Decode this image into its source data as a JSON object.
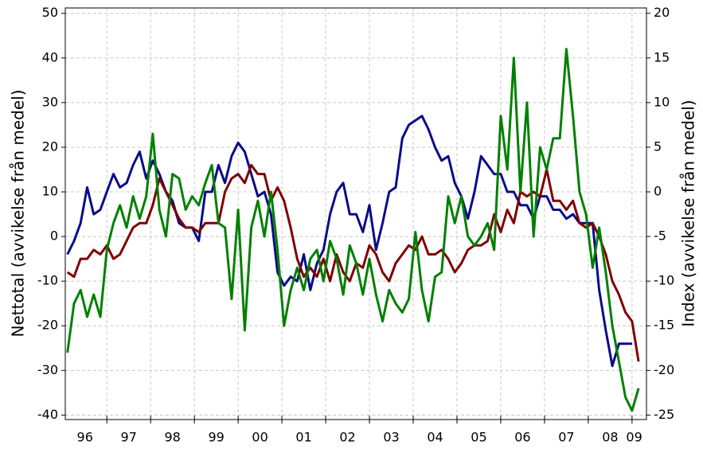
{
  "chart_data": {
    "type": "line",
    "y_label": "Nettotal (avvikelse från medel)",
    "y2_label": "Index (avvikelse från medel)",
    "xlim": [
      1996.05,
      2009.33
    ],
    "xticks": [
      {
        "value": 1996.5,
        "label": "96"
      },
      {
        "value": 1997.5,
        "label": "97"
      },
      {
        "value": 1998.5,
        "label": "98"
      },
      {
        "value": 1999.5,
        "label": "99"
      },
      {
        "value": 2000.5,
        "label": "00"
      },
      {
        "value": 2001.5,
        "label": "01"
      },
      {
        "value": 2002.5,
        "label": "02"
      },
      {
        "value": 2003.5,
        "label": "03"
      },
      {
        "value": 2004.5,
        "label": "04"
      },
      {
        "value": 2005.5,
        "label": "05"
      },
      {
        "value": 2006.5,
        "label": "06"
      },
      {
        "value": 2007.5,
        "label": "07"
      },
      {
        "value": 2008.5,
        "label": "08"
      },
      {
        "value": 2009.05,
        "label": "09"
      }
    ],
    "xgrid": [
      1997,
      1998,
      1999,
      2000,
      2001,
      2002,
      2003,
      2004,
      2005,
      2006,
      2007,
      2008,
      2009
    ],
    "ylim": [
      -41,
      51.2
    ],
    "yticks": [
      -40,
      -30,
      -20,
      -10,
      0,
      10,
      20,
      30,
      40,
      50
    ],
    "y2lim": [
      -25.5,
      20.6
    ],
    "y2ticks": [
      -25,
      -20,
      -15,
      -10,
      -5,
      0,
      5,
      10,
      15,
      20
    ],
    "grid": true,
    "x": [
      1996.1,
      1996.25,
      1996.4,
      1996.55,
      1996.7,
      1996.85,
      1997,
      1997.15,
      1997.3,
      1997.45,
      1997.6,
      1997.75,
      1997.9,
      1998.05,
      1998.2,
      1998.35,
      1998.5,
      1998.65,
      1998.8,
      1998.95,
      1999.1,
      1999.25,
      1999.4,
      1999.55,
      1999.7,
      1999.85,
      2000,
      2000.15,
      2000.3,
      2000.45,
      2000.6,
      2000.75,
      2000.9,
      2001.05,
      2001.2,
      2001.35,
      2001.5,
      2001.65,
      2001.8,
      2001.95,
      2002.1,
      2002.25,
      2002.4,
      2002.55,
      2002.7,
      2002.85,
      2003,
      2003.15,
      2003.3,
      2003.45,
      2003.6,
      2003.75,
      2003.9,
      2004.05,
      2004.2,
      2004.35,
      2004.5,
      2004.65,
      2004.8,
      2004.95,
      2005.1,
      2005.25,
      2005.4,
      2005.55,
      2005.7,
      2005.85,
      2006,
      2006.15,
      2006.3,
      2006.45,
      2006.6,
      2006.75,
      2006.9,
      2007.05,
      2007.2,
      2007.35,
      2007.5,
      2007.65,
      2007.8,
      2007.95,
      2008.1,
      2008.25,
      2008.4,
      2008.55,
      2008.7,
      2008.85,
      2009,
      2009.15
    ],
    "series": [
      {
        "color": "#0b0b8a",
        "values": [
          -4,
          -1,
          3,
          11,
          5,
          6,
          10,
          14,
          11,
          12,
          16,
          19,
          13,
          17,
          14,
          10,
          8,
          3,
          2,
          2,
          -1,
          10,
          10,
          16,
          12,
          18,
          21,
          19,
          14,
          9,
          10,
          5,
          -8,
          -11,
          -9,
          -10,
          -4,
          -12,
          -6,
          -3,
          5,
          10,
          12,
          5,
          5,
          1,
          7,
          -3,
          3,
          10,
          11,
          22,
          25,
          26,
          27,
          24,
          20,
          17,
          18,
          12,
          9,
          4,
          10,
          18,
          16,
          14,
          14,
          10,
          10,
          7,
          7,
          4,
          9,
          9,
          6,
          6,
          4,
          5,
          3,
          3,
          3,
          -12,
          -21,
          -29,
          -24,
          -24,
          -24,
          null
        ]
      },
      {
        "color": "#800000",
        "values": [
          -8,
          -9,
          -5,
          -5,
          -3,
          -4,
          -2,
          -5,
          -4,
          -1,
          2,
          3,
          3,
          7,
          13,
          10,
          7,
          4,
          2,
          2,
          1,
          3,
          3,
          3,
          10,
          13,
          14,
          12,
          16,
          14,
          14,
          8,
          11,
          8,
          2,
          -5,
          -9,
          -7,
          -9,
          -5,
          -10,
          -4,
          -8,
          -10,
          -6,
          -7,
          -2,
          -4,
          -8,
          -10,
          -6,
          -4,
          -2,
          -3,
          0,
          -4,
          -4,
          -3,
          -5,
          -8,
          -6,
          -3,
          -2,
          -2,
          -1,
          5,
          1,
          6,
          3,
          10,
          9,
          10,
          9,
          15,
          8,
          8,
          6,
          8,
          3,
          2,
          3,
          0,
          -4,
          -10,
          -13,
          -17,
          -19,
          -28
        ]
      },
      {
        "color": "#008000",
        "values": [
          -26,
          -15,
          -12,
          -18,
          -13,
          -18,
          -3,
          3,
          7,
          2,
          9,
          4,
          9,
          23,
          6,
          0,
          14,
          13,
          6,
          9,
          7,
          12,
          16,
          3,
          2,
          -14,
          6,
          -21,
          2,
          8,
          0,
          10,
          -3,
          -20,
          -12,
          -7,
          -12,
          -5,
          -3,
          -10,
          -1,
          -5,
          -13,
          -2,
          -6,
          -13,
          -5,
          -13,
          -19,
          -12,
          -15,
          -17,
          -14,
          1,
          -12,
          -19,
          -9,
          -8,
          9,
          3,
          9,
          0,
          -2,
          0,
          3,
          -3,
          27,
          15,
          40,
          10,
          30,
          0,
          20,
          15,
          22,
          22,
          42,
          27,
          10,
          5,
          -7,
          2,
          -8,
          -20,
          -28,
          -36,
          -39,
          -34
        ]
      }
    ]
  }
}
